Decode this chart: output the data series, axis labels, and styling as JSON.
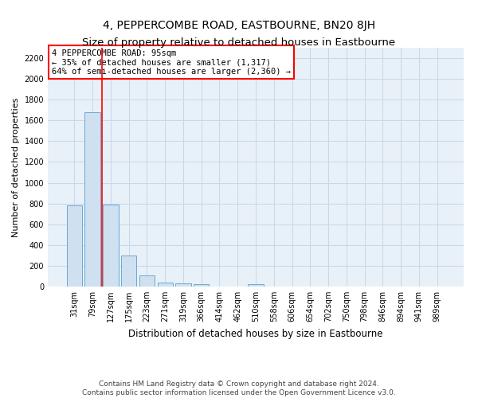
{
  "title": "4, PEPPERCOMBE ROAD, EASTBOURNE, BN20 8JH",
  "subtitle": "Size of property relative to detached houses in Eastbourne",
  "xlabel": "Distribution of detached houses by size in Eastbourne",
  "ylabel": "Number of detached properties",
  "categories": [
    "31sqm",
    "79sqm",
    "127sqm",
    "175sqm",
    "223sqm",
    "271sqm",
    "319sqm",
    "366sqm",
    "414sqm",
    "462sqm",
    "510sqm",
    "558sqm",
    "606sqm",
    "654sqm",
    "702sqm",
    "750sqm",
    "798sqm",
    "846sqm",
    "894sqm",
    "941sqm",
    "989sqm"
  ],
  "values": [
    780,
    1680,
    790,
    300,
    110,
    40,
    30,
    20,
    0,
    0,
    25,
    0,
    0,
    0,
    0,
    0,
    0,
    0,
    0,
    0,
    0
  ],
  "bar_color": "#cfe0f0",
  "bar_edge_color": "#6aaad4",
  "grid_color": "#c8d8e8",
  "bg_color": "#e8f0f8",
  "annotation_box_text": "4 PEPPERCOMBE ROAD: 95sqm\n← 35% of detached houses are smaller (1,317)\n64% of semi-detached houses are larger (2,360) →",
  "annotation_box_color": "white",
  "annotation_box_edge_color": "red",
  "property_line_x": 1.5,
  "property_line_color": "red",
  "ylim": [
    0,
    2300
  ],
  "yticks": [
    0,
    200,
    400,
    600,
    800,
    1000,
    1200,
    1400,
    1600,
    1800,
    2000,
    2200
  ],
  "footnote": "Contains HM Land Registry data © Crown copyright and database right 2024.\nContains public sector information licensed under the Open Government Licence v3.0.",
  "title_fontsize": 10,
  "xlabel_fontsize": 8.5,
  "ylabel_fontsize": 8,
  "tick_fontsize": 7,
  "footnote_fontsize": 6.5
}
